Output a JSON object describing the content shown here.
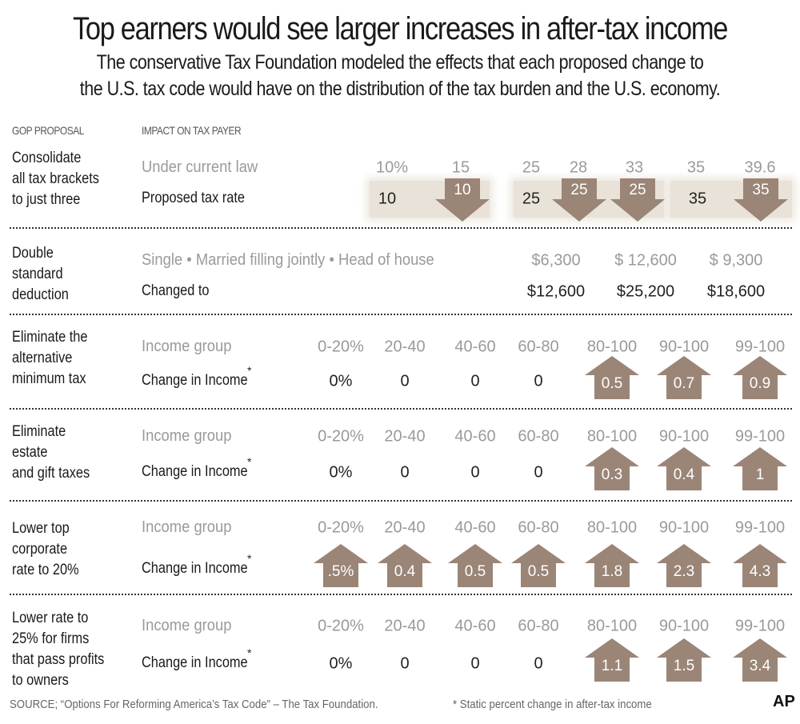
{
  "title": "Top earners would see larger increases in after-tax income",
  "subtitle_lines": [
    "The conservative Tax Foundation modeled the effects that each proposed change to",
    "the U.S. tax code would have on the distribution of the tax burden and the U.S. economy."
  ],
  "headers": {
    "proposal": "GOP PROPOSAL",
    "impact": "IMPACT ON TAX PAYER"
  },
  "colors": {
    "arrow": "#9a8577",
    "band": "#e9e2d8",
    "grey_text": "#9a9a9a"
  },
  "chart_data": {
    "type": "table",
    "sections": [
      {
        "proposal": [
          "Consolidate",
          "all tax brackets",
          "to just three"
        ],
        "row1_label": "Under current law",
        "row2_label": "Proposed tax rate",
        "row1": [
          "10%",
          "15",
          "25",
          "28",
          "33",
          "35",
          "39.6"
        ],
        "row2": [
          "10",
          "10",
          "25",
          "25",
          "25",
          "35",
          "35"
        ],
        "row2_decrease": [
          false,
          true,
          false,
          true,
          true,
          false,
          true
        ]
      },
      {
        "proposal": [
          "Double",
          "standard",
          "deduction"
        ],
        "row1_label": "Single • Married filling jointly • Head of house",
        "row2_label": "Changed to",
        "row1": [
          "$6,300",
          "$ 12,600",
          "$ 9,300"
        ],
        "row2": [
          "$12,600",
          "$25,200",
          "$18,600"
        ]
      },
      {
        "proposal": [
          "Eliminate the",
          "alternative",
          "minimum tax"
        ],
        "row1_label": "Income group",
        "row2_label": "Change in Income",
        "asterisk": "*",
        "row1": [
          "0-20%",
          "20-40",
          "40-60",
          "60-80",
          "80-100",
          "90-100",
          "99-100"
        ],
        "row2": [
          "0%",
          "0",
          "0",
          "0",
          "0.5",
          "0.7",
          "0.9"
        ],
        "row2_increase": [
          false,
          false,
          false,
          false,
          true,
          true,
          true
        ]
      },
      {
        "proposal": [
          "Eliminate",
          "estate",
          "and gift taxes"
        ],
        "row1_label": "Income group",
        "row2_label": "Change in Income",
        "asterisk": "*",
        "row1": [
          "0-20%",
          "20-40",
          "40-60",
          "60-80",
          "80-100",
          "90-100",
          "99-100"
        ],
        "row2": [
          "0%",
          "0",
          "0",
          "0",
          "0.3",
          "0.4",
          "1"
        ],
        "row2_increase": [
          false,
          false,
          false,
          false,
          true,
          true,
          true
        ]
      },
      {
        "proposal": [
          "Lower top",
          "corporate",
          "rate to 20%"
        ],
        "row1_label": "Income group",
        "row2_label": "Change in Income",
        "asterisk": "*",
        "row1": [
          "0-20%",
          "20-40",
          "40-60",
          "60-80",
          "80-100",
          "90-100",
          "99-100"
        ],
        "row2": [
          ".5%",
          "0.4",
          "0.5",
          "0.5",
          "1.8",
          "2.3",
          "4.3"
        ],
        "row2_increase": [
          true,
          true,
          true,
          true,
          true,
          true,
          true
        ]
      },
      {
        "proposal": [
          "Lower rate to",
          "25% for firms",
          "that pass profits",
          "to owners"
        ],
        "row1_label": "Income group",
        "row2_label": "Change in Income",
        "asterisk": "*",
        "row1": [
          "0-20%",
          "20-40",
          "40-60",
          "60-80",
          "80-100",
          "90-100",
          "99-100"
        ],
        "row2": [
          "0%",
          "0",
          "0",
          "0",
          "1.1",
          "1.5",
          "3.4"
        ],
        "row2_increase": [
          false,
          false,
          false,
          false,
          true,
          true,
          true
        ]
      }
    ]
  },
  "footer": {
    "source": "SOURCE; “Options For Reforming America’s Tax Code”  – The Tax Foundation.",
    "note": "* Static percent change in after-tax income",
    "logo": "AP"
  }
}
